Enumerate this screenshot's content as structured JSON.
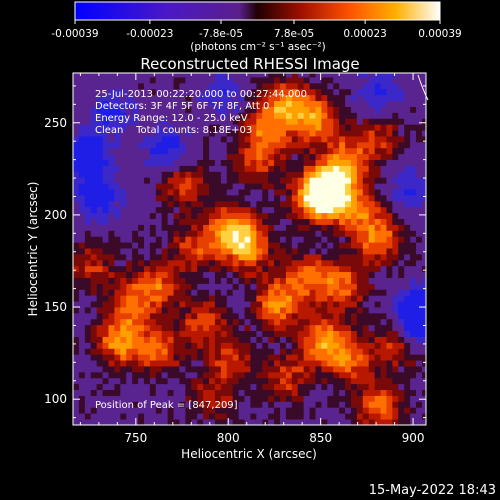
{
  "colorbar": {
    "tick_labels": [
      "-0.00039",
      "-0.00023",
      "-7.8e-05",
      "7.8e-05",
      "0.00023",
      "0.00039"
    ],
    "tick_values": [
      -0.00039,
      -0.00023,
      -7.8e-05,
      7.8e-05,
      0.00023,
      0.00039
    ],
    "range": [
      -0.00039,
      0.00039
    ],
    "unit_label": "(photons cm⁻² s⁻¹ asec⁻²)"
  },
  "chart_data": {
    "type": "heatmap",
    "title": "Reconstructed RHESSI Image",
    "xlabel": "Heliocentric X (arcsec)",
    "ylabel": "Heliocentric Y (arcsec)",
    "xlim": [
      716,
      907
    ],
    "ylim": [
      86,
      277
    ],
    "x_ticks": [
      750,
      800,
      850,
      900
    ],
    "y_ticks": [
      100,
      150,
      200,
      250
    ],
    "peak": [
      847,
      209
    ],
    "annotation_lines": [
      "25-Jul-2013 00:22:20.000 to 00:27:44.000",
      "Detectors: 3F 4F 5F 6F 7F 8F, Att 0",
      "Energy Range: 12.0 - 25.0 keV",
      "Clean    Total counts: 8.18E+03"
    ],
    "peak_label": "Position of Peak = [847,209]",
    "blobs": [
      {
        "x": 847,
        "y": 209,
        "v": 1.0
      },
      {
        "x": 855,
        "y": 212,
        "v": 0.85
      },
      {
        "x": 862,
        "y": 228,
        "v": 0.6
      },
      {
        "x": 845,
        "y": 250,
        "v": 0.7
      },
      {
        "x": 830,
        "y": 260,
        "v": 0.6
      },
      {
        "x": 800,
        "y": 190,
        "v": 0.8
      },
      {
        "x": 810,
        "y": 180,
        "v": 0.6
      },
      {
        "x": 820,
        "y": 245,
        "v": 0.55
      },
      {
        "x": 775,
        "y": 215,
        "v": 0.5
      },
      {
        "x": 780,
        "y": 180,
        "v": 0.45
      },
      {
        "x": 760,
        "y": 160,
        "v": 0.55
      },
      {
        "x": 745,
        "y": 150,
        "v": 0.45
      },
      {
        "x": 740,
        "y": 130,
        "v": 0.7
      },
      {
        "x": 760,
        "y": 125,
        "v": 0.55
      },
      {
        "x": 785,
        "y": 140,
        "v": 0.5
      },
      {
        "x": 800,
        "y": 120,
        "v": 0.45
      },
      {
        "x": 825,
        "y": 150,
        "v": 0.65
      },
      {
        "x": 840,
        "y": 165,
        "v": 0.55
      },
      {
        "x": 860,
        "y": 160,
        "v": 0.6
      },
      {
        "x": 880,
        "y": 185,
        "v": 0.6
      },
      {
        "x": 870,
        "y": 200,
        "v": 0.5
      },
      {
        "x": 850,
        "y": 130,
        "v": 0.7
      },
      {
        "x": 865,
        "y": 120,
        "v": 0.55
      },
      {
        "x": 830,
        "y": 110,
        "v": 0.45
      },
      {
        "x": 880,
        "y": 95,
        "v": 0.6
      },
      {
        "x": 890,
        "y": 130,
        "v": 0.5
      },
      {
        "x": 725,
        "y": 170,
        "v": 0.4
      },
      {
        "x": 815,
        "y": 228,
        "v": 0.45
      },
      {
        "x": 790,
        "y": 100,
        "v": 0.35
      },
      {
        "x": 880,
        "y": 240,
        "v": 0.4
      }
    ],
    "cold_spots": [
      {
        "x": 722,
        "y": 230,
        "v": -0.9
      },
      {
        "x": 728,
        "y": 208,
        "v": -0.7
      },
      {
        "x": 765,
        "y": 235,
        "v": -0.6
      },
      {
        "x": 900,
        "y": 140,
        "v": -0.9
      },
      {
        "x": 905,
        "y": 150,
        "v": -0.6
      },
      {
        "x": 795,
        "y": 265,
        "v": -0.4
      },
      {
        "x": 880,
        "y": 265,
        "v": -0.5
      },
      {
        "x": 735,
        "y": 255,
        "v": -0.5
      },
      {
        "x": 895,
        "y": 212,
        "v": -0.4
      }
    ]
  },
  "footer": {
    "timestamp": "15-May-2022 18:43"
  }
}
